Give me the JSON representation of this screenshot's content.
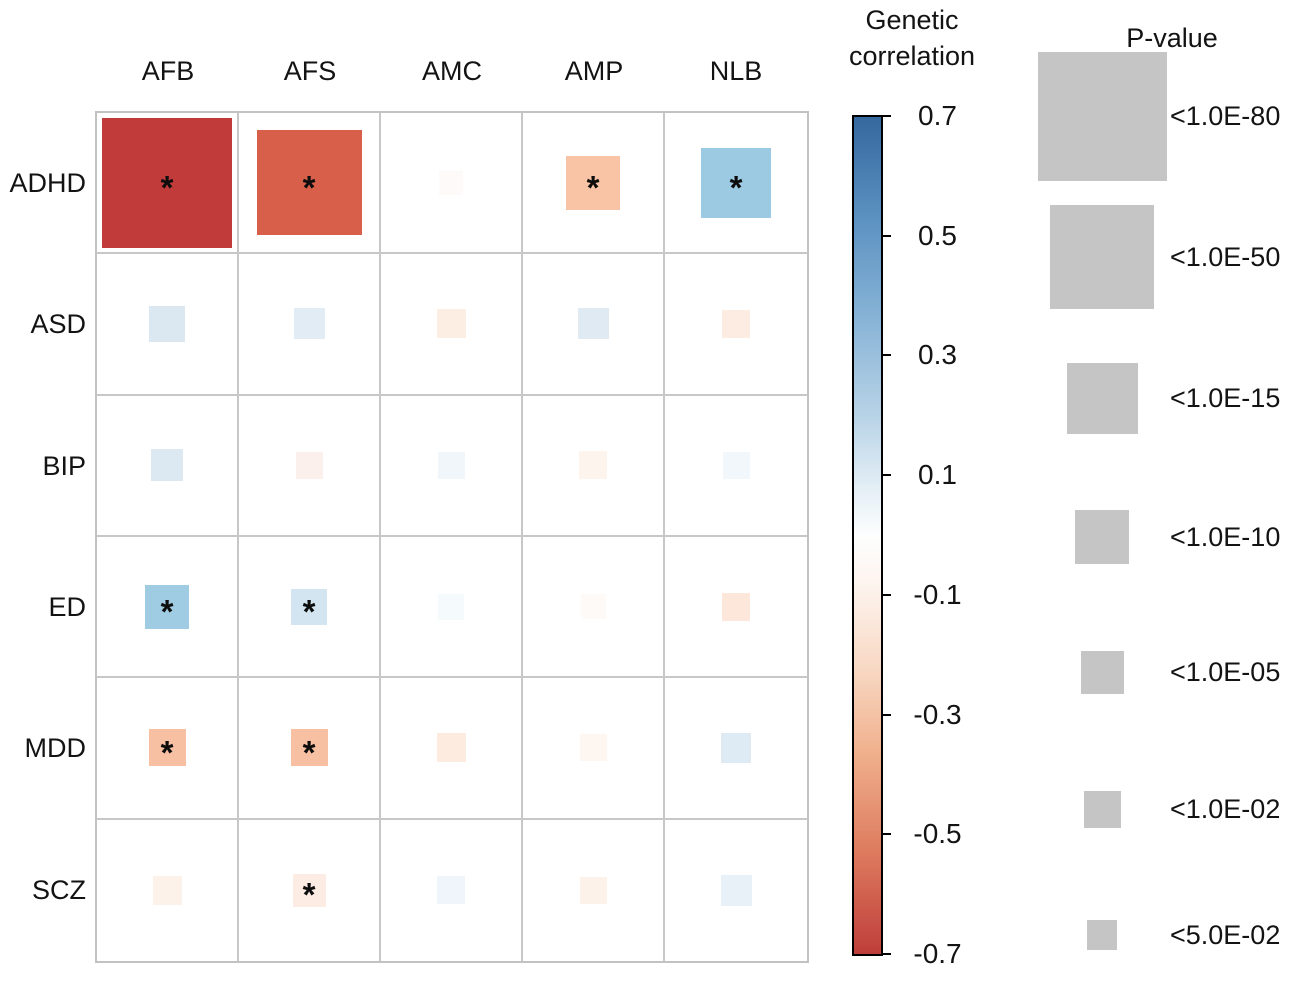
{
  "chart_data": {
    "type": "heatmap",
    "description": "Genetic correlation matrix between psychiatric disorders (rows) and reproductive traits (columns); square color encodes genetic correlation, square size encodes P-value, asterisk marks significance",
    "rows": [
      "ADHD",
      "ASD",
      "BIP",
      "ED",
      "MDD",
      "SCZ"
    ],
    "columns": [
      "AFB",
      "AFS",
      "AMC",
      "AMP",
      "NLB"
    ],
    "cells": [
      [
        {
          "r": -0.65,
          "p": "<1.0E-80",
          "sig": true,
          "color": "#c23b3b",
          "size": 130
        },
        {
          "r": -0.48,
          "p": "<1.0E-50",
          "sig": true,
          "color": "#d8604a",
          "size": 105
        },
        {
          "r": -0.01,
          "sig": false,
          "color": "#fefafa",
          "size": 24
        },
        {
          "r": -0.25,
          "p": "<1.0E-10",
          "sig": true,
          "color": "#f9c3a5",
          "size": 54
        },
        {
          "r": 0.33,
          "p": "<1.0E-15",
          "sig": true,
          "color": "#9ccae2",
          "size": 70
        }
      ],
      [
        {
          "r": 0.12,
          "sig": false,
          "color": "#dbe8f2",
          "size": 36
        },
        {
          "r": 0.1,
          "sig": false,
          "color": "#e1ecf5",
          "size": 31
        },
        {
          "r": -0.08,
          "sig": false,
          "color": "#fdeee4",
          "size": 29
        },
        {
          "r": 0.11,
          "sig": false,
          "color": "#dfeaf3",
          "size": 31
        },
        {
          "r": -0.08,
          "sig": false,
          "color": "#fdece2",
          "size": 28
        }
      ],
      [
        {
          "r": 0.12,
          "sig": false,
          "color": "#dce9f3",
          "size": 32
        },
        {
          "r": -0.06,
          "sig": false,
          "color": "#fcf0ed",
          "size": 27
        },
        {
          "r": 0.04,
          "sig": false,
          "color": "#f0f6fa",
          "size": 27
        },
        {
          "r": -0.05,
          "sig": false,
          "color": "#fdf4ee",
          "size": 28
        },
        {
          "r": 0.04,
          "sig": false,
          "color": "#f2f7fb",
          "size": 27
        }
      ],
      [
        {
          "r": 0.31,
          "p": "<1.0E-05",
          "sig": true,
          "color": "#a0cce3",
          "size": 44
        },
        {
          "r": 0.16,
          "p": "<1.0E-02",
          "sig": true,
          "color": "#d3e5f1",
          "size": 36
        },
        {
          "r": 0.03,
          "sig": false,
          "color": "#f5fafc",
          "size": 26
        },
        {
          "r": -0.02,
          "sig": false,
          "color": "#fdfaf7",
          "size": 25
        },
        {
          "r": -0.1,
          "sig": false,
          "color": "#fde7db",
          "size": 28
        }
      ],
      [
        {
          "r": -0.27,
          "p": "<1.0E-02",
          "sig": true,
          "color": "#f8c0a2",
          "size": 37
        },
        {
          "r": -0.27,
          "p": "<1.0E-02",
          "sig": true,
          "color": "#f8c0a2",
          "size": 37
        },
        {
          "r": -0.09,
          "sig": false,
          "color": "#fdebe0",
          "size": 29
        },
        {
          "r": -0.04,
          "sig": false,
          "color": "#fdf6f1",
          "size": 27
        },
        {
          "r": 0.12,
          "sig": false,
          "color": "#dfebf4",
          "size": 30
        }
      ],
      [
        {
          "r": -0.05,
          "sig": false,
          "color": "#fdf2ea",
          "size": 29
        },
        {
          "r": -0.09,
          "p": "<5.0E-02",
          "sig": true,
          "color": "#fcece3",
          "size": 33
        },
        {
          "r": 0.05,
          "sig": false,
          "color": "#eff5fa",
          "size": 28
        },
        {
          "r": -0.05,
          "sig": false,
          "color": "#fdf2ea",
          "size": 27
        },
        {
          "r": 0.08,
          "sig": false,
          "color": "#e9f1f8",
          "size": 31
        }
      ]
    ],
    "significance_marker": "*",
    "colorbar": {
      "title_lines": [
        "Genetic",
        "correlation"
      ],
      "ticks": [
        "0.7",
        "0.5",
        "0.3",
        "0.1",
        "-0.1",
        "-0.3",
        "-0.5",
        "-0.7"
      ],
      "min": -0.7,
      "max": 0.7,
      "top_color": "#35689e",
      "mid_color": "#ffffff",
      "bottom_color": "#bf3e3a"
    },
    "pvalue_legend": {
      "title": "P-value",
      "square_color": "#c5c5c5",
      "items": [
        {
          "label": "<1.0E-80",
          "size": 129
        },
        {
          "label": "<1.0E-50",
          "size": 104
        },
        {
          "label": "<1.0E-15",
          "size": 71
        },
        {
          "label": "<1.0E-10",
          "size": 54
        },
        {
          "label": "<1.0E-05",
          "size": 43
        },
        {
          "label": "<1.0E-02",
          "size": 37
        },
        {
          "label": "<5.0E-02",
          "size": 30
        }
      ]
    },
    "layout_hints": {
      "grid": "6 rows x 5 cols, light gray gridlines",
      "colorbar_position": "right of matrix, vertical",
      "pvalue_legend_position": "far right, vertical list of gray squares"
    }
  }
}
